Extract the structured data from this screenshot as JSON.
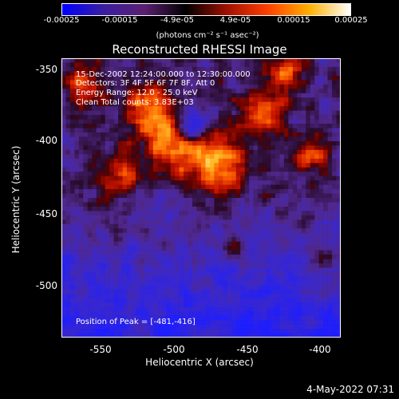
{
  "chart_data": {
    "type": "heatmap",
    "title": "Reconstructed RHESSI Image",
    "xlabel": "Heliocentric X (arcsec)",
    "ylabel": "Heliocentric Y (arcsec)",
    "xlim": [
      -575,
      -385
    ],
    "ylim": [
      -535,
      -345
    ],
    "x_ticks": [
      "-550",
      "-500",
      "-450",
      "-400"
    ],
    "y_ticks": [
      "-350",
      "-400",
      "-450",
      "-500"
    ],
    "colorbar": {
      "ticks": [
        "-0.00025",
        "-0.00015",
        "-4.9e-05",
        "4.9e-05",
        "0.00015",
        "0.00025"
      ],
      "units": "(photons cm⁻² s⁻¹ asec⁻²)",
      "range": [
        -0.00025,
        0.00025
      ],
      "colormap": [
        "#0000ff",
        "#3a1ea0",
        "#5a2070",
        "#000000",
        "#a01000",
        "#ff4000",
        "#ffb000",
        "#ffffff"
      ]
    },
    "annotations": {
      "time_range": "15-Dec-2002 12:24:00.000 to 12:30:00.000",
      "detectors": "Detectors: 3F 4F 5F 6F 7F 8F, Att 0",
      "energy_range": "Energy Range: 12.0 - 25.0 keV",
      "method_counts": "Clean     Total counts: 3.83E+03",
      "peak": "Position of Peak = [-481,-416]"
    },
    "peak_position": [
      -481,
      -416
    ]
  },
  "footer": {
    "timestamp": "4-May-2022 07:31"
  }
}
